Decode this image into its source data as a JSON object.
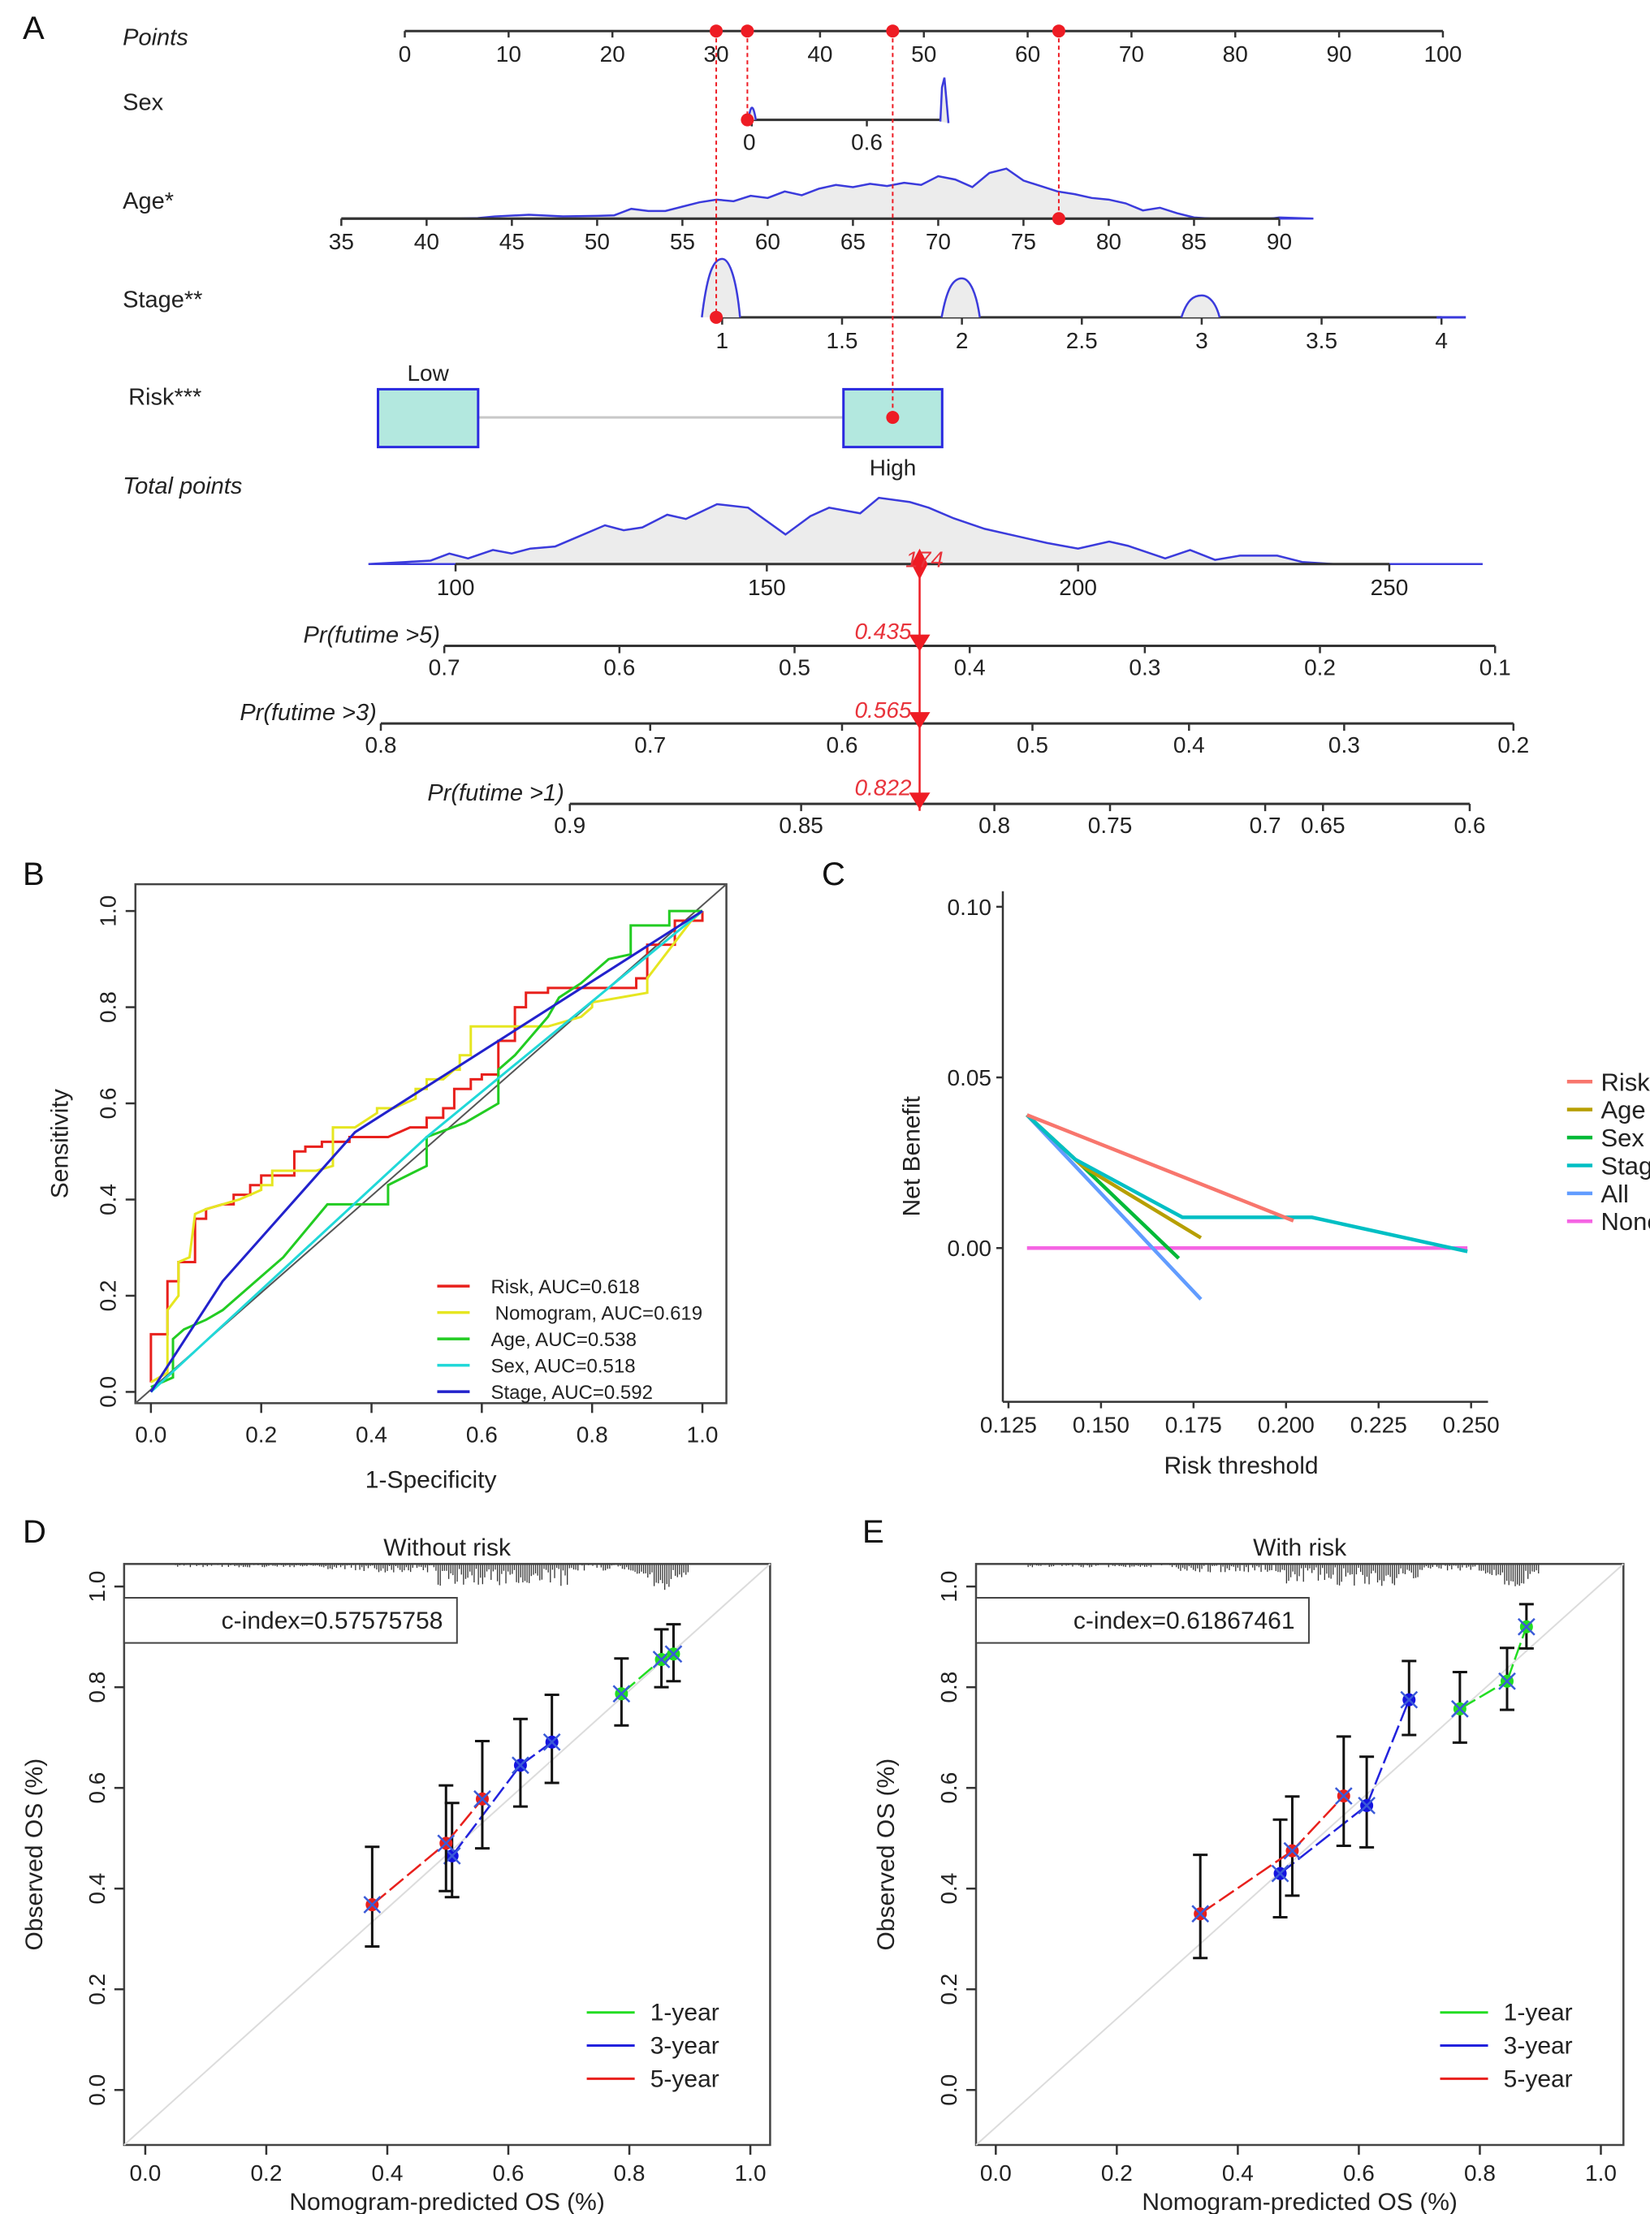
{
  "figure": {
    "panels": [
      "A",
      "B",
      "C",
      "D",
      "E"
    ]
  },
  "chart_data": [
    {
      "panel": "A",
      "type": "nomogram",
      "title": "",
      "rows": [
        {
          "name": "Points",
          "italic": true,
          "ticks": [
            "0",
            "10",
            "20",
            "30",
            "40",
            "50",
            "60",
            "70",
            "80",
            "90",
            "100"
          ],
          "range": [
            0,
            100
          ]
        },
        {
          "name": "Sex",
          "ticks": [
            "0",
            "0.6"
          ],
          "range": [
            0,
            1
          ],
          "density_peaks": [
            0,
            1
          ]
        },
        {
          "name": "Age*",
          "ticks": [
            "35",
            "40",
            "45",
            "50",
            "55",
            "60",
            "65",
            "70",
            "75",
            "80",
            "85",
            "90"
          ],
          "range": [
            35,
            90
          ]
        },
        {
          "name": "Stage**",
          "ticks": [
            "1",
            "1.5",
            "2",
            "2.5",
            "3",
            "3.5",
            "4"
          ],
          "range": [
            1,
            4
          ],
          "density_peaks": [
            1,
            2,
            3
          ]
        },
        {
          "name": "Risk***",
          "categories": [
            "Low",
            "High"
          ]
        },
        {
          "name": "Total points",
          "italic": true,
          "ticks": [
            "100",
            "150",
            "200",
            "250"
          ],
          "range": [
            100,
            250
          ]
        },
        {
          "name": "Pr(futime >5)",
          "italic": true,
          "ticks": [
            "0.7",
            "0.6",
            "0.5",
            "0.4",
            "0.3",
            "0.2",
            "0.1"
          ]
        },
        {
          "name": "Pr(futime >3)",
          "italic": true,
          "ticks": [
            "0.8",
            "0.7",
            "0.6",
            "0.5",
            "0.4",
            "0.3",
            "0.2"
          ]
        },
        {
          "name": "Pr(futime >1)",
          "italic": true,
          "ticks": [
            "0.9",
            "0.85",
            "0.8",
            "0.75",
            "0.7",
            "0.65",
            "0.6"
          ]
        }
      ],
      "patient": {
        "points": {
          "Stage": 30,
          "Sex": 33,
          "Risk": 47,
          "Age": 63
        },
        "values": {
          "Sex": 0,
          "Age": 77,
          "Stage": 1,
          "Risk": "High"
        },
        "total_points": "174",
        "pr5": "0.435",
        "pr3": "0.565",
        "pr1": "0.822"
      }
    },
    {
      "panel": "B",
      "type": "line",
      "title": "",
      "xlabel": "1-Specificity",
      "ylabel": "Sensitivity",
      "xlim": [
        0,
        1
      ],
      "ylim": [
        0,
        1
      ],
      "xticks": [
        "0.0",
        "0.2",
        "0.4",
        "0.6",
        "0.8",
        "1.0"
      ],
      "yticks": [
        "0.0",
        "0.2",
        "0.4",
        "0.6",
        "0.8",
        "1.0"
      ],
      "legend_position": "bottom-right",
      "series": [
        {
          "name": "Risk, AUC=0.618",
          "color": "#e8201c",
          "x": [
            0,
            0,
            0.03,
            0.03,
            0.05,
            0.05,
            0.08,
            0.08,
            0.1,
            0.1,
            0.13,
            0.15,
            0.15,
            0.18,
            0.18,
            0.2,
            0.2,
            0.22,
            0.22,
            0.26,
            0.26,
            0.28,
            0.28,
            0.31,
            0.31,
            0.36,
            0.36,
            0.43,
            0.45,
            0.47,
            0.5,
            0.5,
            0.53,
            0.53,
            0.55,
            0.55,
            0.58,
            0.58,
            0.6,
            0.6,
            0.63,
            0.63,
            0.66,
            0.66,
            0.68,
            0.68,
            0.72,
            0.72,
            0.78,
            0.88,
            0.88,
            0.9,
            0.9,
            0.95,
            0.95,
            1.0,
            1.0
          ],
          "y": [
            0.02,
            0.12,
            0.12,
            0.23,
            0.23,
            0.27,
            0.27,
            0.36,
            0.36,
            0.38,
            0.39,
            0.39,
            0.41,
            0.41,
            0.43,
            0.43,
            0.45,
            0.45,
            0.45,
            0.45,
            0.5,
            0.5,
            0.51,
            0.51,
            0.52,
            0.52,
            0.53,
            0.53,
            0.54,
            0.55,
            0.55,
            0.57,
            0.57,
            0.59,
            0.59,
            0.63,
            0.63,
            0.65,
            0.65,
            0.66,
            0.66,
            0.73,
            0.73,
            0.8,
            0.8,
            0.83,
            0.83,
            0.84,
            0.84,
            0.84,
            0.86,
            0.86,
            0.93,
            0.93,
            0.98,
            0.98,
            1.0
          ]
        },
        {
          "name": "Nomogram, AUC=0.619",
          "color": "#e6e620",
          "x": [
            0,
            0.03,
            0.03,
            0.05,
            0.05,
            0.07,
            0.08,
            0.1,
            0.13,
            0.16,
            0.18,
            0.2,
            0.2,
            0.22,
            0.22,
            0.3,
            0.33,
            0.33,
            0.37,
            0.41,
            0.41,
            0.44,
            0.48,
            0.48,
            0.5,
            0.5,
            0.53,
            0.55,
            0.56,
            0.56,
            0.58,
            0.58,
            0.66,
            0.66,
            0.72,
            0.78,
            0.8,
            0.8,
            0.9,
            0.9,
            0.98,
            1.0
          ],
          "y": [
            0.02,
            0.04,
            0.17,
            0.2,
            0.27,
            0.28,
            0.37,
            0.38,
            0.39,
            0.4,
            0.41,
            0.42,
            0.43,
            0.43,
            0.46,
            0.46,
            0.47,
            0.55,
            0.55,
            0.58,
            0.59,
            0.59,
            0.61,
            0.63,
            0.63,
            0.65,
            0.65,
            0.67,
            0.67,
            0.7,
            0.7,
            0.76,
            0.76,
            0.76,
            0.76,
            0.78,
            0.8,
            0.81,
            0.83,
            0.86,
            0.98,
            1.0
          ]
        },
        {
          "name": "Age, AUC=0.538",
          "color": "#22cc22",
          "x": [
            0,
            0.04,
            0.04,
            0.06,
            0.1,
            0.13,
            0.2,
            0.24,
            0.32,
            0.38,
            0.43,
            0.43,
            0.5,
            0.5,
            0.57,
            0.63,
            0.63,
            0.66,
            0.72,
            0.74,
            0.78,
            0.83,
            0.87,
            0.87,
            0.9,
            0.94,
            0.94,
            1.0
          ],
          "y": [
            0.01,
            0.03,
            0.11,
            0.13,
            0.15,
            0.17,
            0.24,
            0.28,
            0.39,
            0.39,
            0.39,
            0.43,
            0.47,
            0.53,
            0.56,
            0.6,
            0.67,
            0.7,
            0.78,
            0.82,
            0.85,
            0.9,
            0.91,
            0.97,
            0.97,
            0.97,
            1.0,
            1.0
          ]
        },
        {
          "name": "Sex, AUC=0.518",
          "color": "#20d8d8",
          "x": [
            0,
            0.5,
            1.0
          ],
          "y": [
            0,
            0.53,
            1.0
          ]
        },
        {
          "name": "Stage, AUC=0.592",
          "color": "#2222cc",
          "x": [
            0,
            0.13,
            0.37,
            1.0
          ],
          "y": [
            0,
            0.23,
            0.54,
            1.0
          ]
        }
      ],
      "reference_line": {
        "name": "diagonal",
        "x": [
          0,
          1
        ],
        "y": [
          0,
          1
        ]
      }
    },
    {
      "panel": "C",
      "type": "line",
      "title": "",
      "xlabel": "Risk threshold",
      "ylabel": "Net Benefit",
      "xlim": [
        0.125,
        0.25
      ],
      "ylim": [
        -0.045,
        0.105
      ],
      "xticks": [
        "0.125",
        "0.150",
        "0.175",
        "0.200",
        "0.225",
        "0.250"
      ],
      "yticks": [
        "0.00",
        "0.05",
        "0.10"
      ],
      "legend_position": "right",
      "series": [
        {
          "name": "Risk",
          "color": "#f8766d",
          "x": [
            0.13,
            0.202
          ],
          "y": [
            0.039,
            0.008
          ]
        },
        {
          "name": "Age",
          "color": "#b79f00",
          "x": [
            0.13,
            0.145,
            0.177
          ],
          "y": [
            0.039,
            0.024,
            0.003
          ]
        },
        {
          "name": "Sex",
          "color": "#00ba38",
          "x": [
            0.13,
            0.145,
            0.171
          ],
          "y": [
            0.039,
            0.024,
            -0.003
          ]
        },
        {
          "name": "Stage",
          "color": "#00bfc4",
          "x": [
            0.13,
            0.143,
            0.172,
            0.207,
            0.249
          ],
          "y": [
            0.039,
            0.026,
            0.009,
            0.009,
            -0.001
          ]
        },
        {
          "name": "All",
          "color": "#619cff",
          "x": [
            0.13,
            0.177
          ],
          "y": [
            0.039,
            -0.015
          ]
        },
        {
          "name": "None",
          "color": "#f564e3",
          "x": [
            0.13,
            0.249
          ],
          "y": [
            0.0,
            0.0
          ]
        }
      ]
    },
    {
      "panel": "D",
      "type": "scatter",
      "title": "Without risk",
      "xlabel": "Nomogram-predicted OS (%)",
      "ylabel": "Observed OS (%)",
      "xlim": [
        0,
        1
      ],
      "ylim": [
        0,
        1
      ],
      "xticks": [
        "0.0",
        "0.2",
        "0.4",
        "0.6",
        "0.8",
        "1.0"
      ],
      "yticks": [
        "0.0",
        "0.2",
        "0.4",
        "0.6",
        "0.8",
        "1.0"
      ],
      "annotation": "c-index=0.57575758",
      "legend_position": "bottom-right",
      "series": [
        {
          "name": "1-year",
          "color": "#22dd22",
          "points": [
            {
              "x": 0.787,
              "y": 0.787,
              "lo": 0.724,
              "hi": 0.857
            },
            {
              "x": 0.853,
              "y": 0.855,
              "lo": 0.8,
              "hi": 0.915
            },
            {
              "x": 0.873,
              "y": 0.866,
              "lo": 0.812,
              "hi": 0.925
            }
          ]
        },
        {
          "name": "3-year",
          "color": "#2222dd",
          "points": [
            {
              "x": 0.507,
              "y": 0.465,
              "lo": 0.383,
              "hi": 0.57
            },
            {
              "x": 0.62,
              "y": 0.645,
              "lo": 0.563,
              "hi": 0.737
            },
            {
              "x": 0.672,
              "y": 0.691,
              "lo": 0.61,
              "hi": 0.785
            }
          ]
        },
        {
          "name": "5-year",
          "color": "#e8201c",
          "points": [
            {
              "x": 0.375,
              "y": 0.368,
              "lo": 0.285,
              "hi": 0.483
            },
            {
              "x": 0.497,
              "y": 0.49,
              "lo": 0.395,
              "hi": 0.605
            },
            {
              "x": 0.557,
              "y": 0.578,
              "lo": 0.48,
              "hi": 0.693
            }
          ]
        }
      ]
    },
    {
      "panel": "E",
      "type": "scatter",
      "title": "With risk",
      "xlabel": "Nomogram-predicted OS (%)",
      "ylabel": "Observed OS (%)",
      "xlim": [
        0,
        1
      ],
      "ylim": [
        0,
        1
      ],
      "xticks": [
        "0.0",
        "0.2",
        "0.4",
        "0.6",
        "0.8",
        "1.0"
      ],
      "yticks": [
        "0.0",
        "0.2",
        "0.4",
        "0.6",
        "0.8",
        "1.0"
      ],
      "annotation": "c-index=0.61867461",
      "legend_position": "bottom-right",
      "series": [
        {
          "name": "1-year",
          "color": "#22dd22",
          "points": [
            {
              "x": 0.767,
              "y": 0.757,
              "lo": 0.69,
              "hi": 0.83
            },
            {
              "x": 0.845,
              "y": 0.812,
              "lo": 0.755,
              "hi": 0.878
            },
            {
              "x": 0.877,
              "y": 0.92,
              "lo": 0.877,
              "hi": 0.965
            }
          ]
        },
        {
          "name": "3-year",
          "color": "#2222dd",
          "points": [
            {
              "x": 0.47,
              "y": 0.43,
              "lo": 0.343,
              "hi": 0.537
            },
            {
              "x": 0.613,
              "y": 0.565,
              "lo": 0.482,
              "hi": 0.662
            },
            {
              "x": 0.683,
              "y": 0.775,
              "lo": 0.705,
              "hi": 0.852
            }
          ]
        },
        {
          "name": "5-year",
          "color": "#e8201c",
          "points": [
            {
              "x": 0.338,
              "y": 0.35,
              "lo": 0.262,
              "hi": 0.467
            },
            {
              "x": 0.49,
              "y": 0.475,
              "lo": 0.386,
              "hi": 0.583
            },
            {
              "x": 0.575,
              "y": 0.584,
              "lo": 0.485,
              "hi": 0.702
            }
          ]
        }
      ]
    }
  ]
}
